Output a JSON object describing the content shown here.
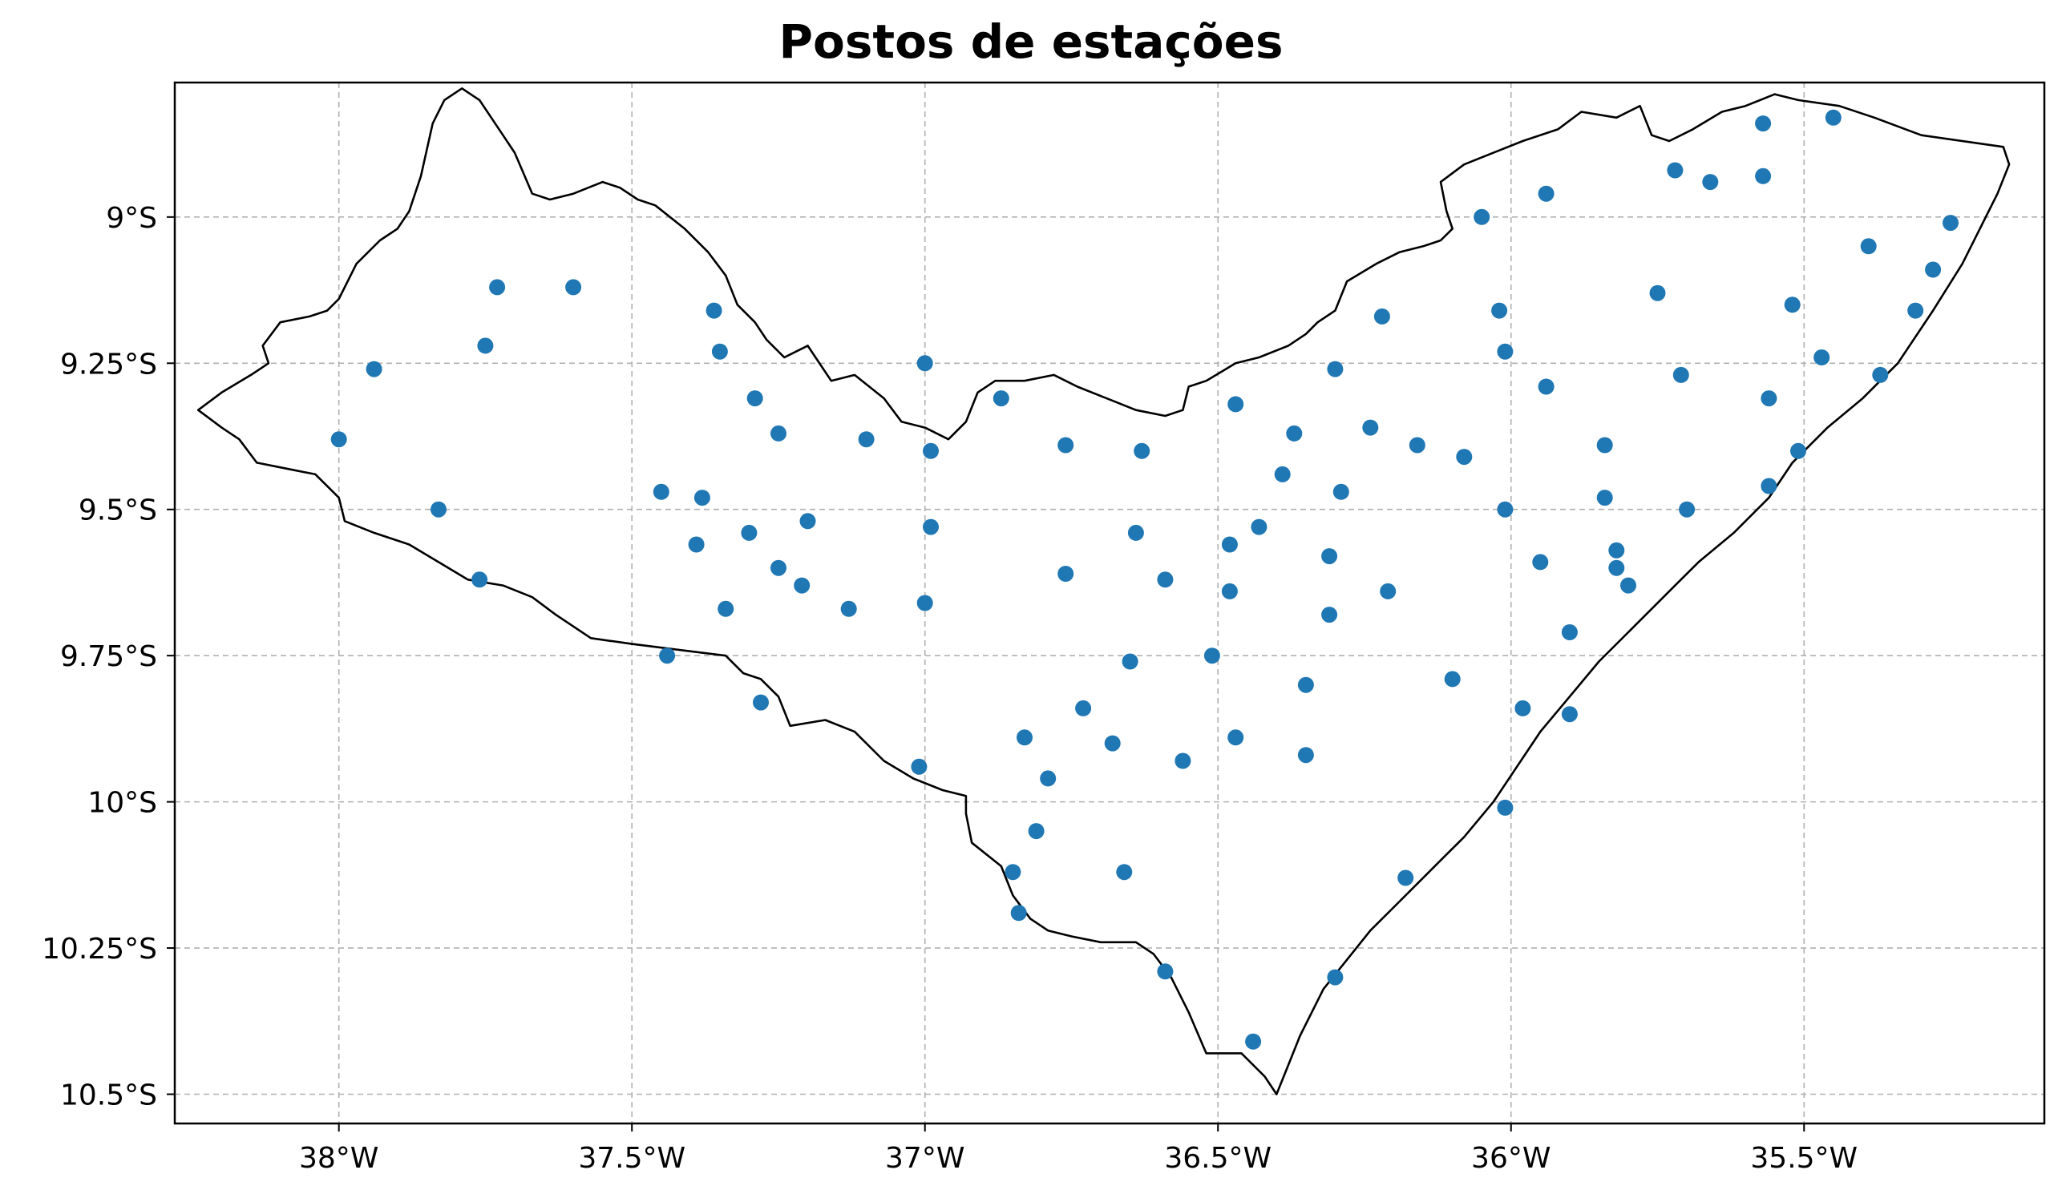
{
  "chart_data": {
    "type": "scatter",
    "title": "Postos de estações",
    "x_ticks": [
      -38.0,
      -37.5,
      -37.0,
      -36.5,
      -36.0,
      -35.5
    ],
    "x_tick_labels": [
      "38°W",
      "37.5°W",
      "37°W",
      "36.5°W",
      "36°W",
      "35.5°W"
    ],
    "y_ticks": [
      -9.0,
      -9.25,
      -9.5,
      -9.75,
      -10.0,
      -10.25,
      -10.5
    ],
    "y_tick_labels": [
      "9°S",
      "9.25°S",
      "9.5°S",
      "9.75°S",
      "10°S",
      "10.25°S",
      "10.5°S"
    ],
    "xlim": [
      -38.28,
      -35.09
    ],
    "ylim": [
      -10.55,
      -8.77
    ],
    "grid": true,
    "marker_color": "#1f77b4",
    "boundary_color": "#000000",
    "boundary": [
      [
        -38.24,
        -9.33
      ],
      [
        -38.2,
        -9.3
      ],
      [
        -38.15,
        -9.27
      ],
      [
        -38.12,
        -9.25
      ],
      [
        -38.13,
        -9.22
      ],
      [
        -38.1,
        -9.18
      ],
      [
        -38.05,
        -9.17
      ],
      [
        -38.02,
        -9.16
      ],
      [
        -38.0,
        -9.14
      ],
      [
        -37.97,
        -9.08
      ],
      [
        -37.93,
        -9.04
      ],
      [
        -37.9,
        -9.02
      ],
      [
        -37.88,
        -8.99
      ],
      [
        -37.86,
        -8.93
      ],
      [
        -37.84,
        -8.84
      ],
      [
        -37.82,
        -8.8
      ],
      [
        -37.79,
        -8.78
      ],
      [
        -37.76,
        -8.8
      ],
      [
        -37.72,
        -8.86
      ],
      [
        -37.7,
        -8.89
      ],
      [
        -37.67,
        -8.96
      ],
      [
        -37.64,
        -8.97
      ],
      [
        -37.6,
        -8.96
      ],
      [
        -37.55,
        -8.94
      ],
      [
        -37.52,
        -8.95
      ],
      [
        -37.49,
        -8.97
      ],
      [
        -37.46,
        -8.98
      ],
      [
        -37.41,
        -9.02
      ],
      [
        -37.37,
        -9.06
      ],
      [
        -37.34,
        -9.1
      ],
      [
        -37.32,
        -9.15
      ],
      [
        -37.29,
        -9.18
      ],
      [
        -37.27,
        -9.21
      ],
      [
        -37.24,
        -9.24
      ],
      [
        -37.2,
        -9.22
      ],
      [
        -37.16,
        -9.28
      ],
      [
        -37.12,
        -9.27
      ],
      [
        -37.07,
        -9.31
      ],
      [
        -37.04,
        -9.35
      ],
      [
        -37.0,
        -9.36
      ],
      [
        -36.96,
        -9.38
      ],
      [
        -36.93,
        -9.35
      ],
      [
        -36.91,
        -9.3
      ],
      [
        -36.88,
        -9.28
      ],
      [
        -36.83,
        -9.28
      ],
      [
        -36.78,
        -9.27
      ],
      [
        -36.74,
        -9.29
      ],
      [
        -36.69,
        -9.31
      ],
      [
        -36.64,
        -9.33
      ],
      [
        -36.59,
        -9.34
      ],
      [
        -36.56,
        -9.33
      ],
      [
        -36.55,
        -9.29
      ],
      [
        -36.52,
        -9.28
      ],
      [
        -36.47,
        -9.25
      ],
      [
        -36.43,
        -9.24
      ],
      [
        -36.38,
        -9.22
      ],
      [
        -36.35,
        -9.2
      ],
      [
        -36.33,
        -9.18
      ],
      [
        -36.3,
        -9.16
      ],
      [
        -36.28,
        -9.11
      ],
      [
        -36.23,
        -9.08
      ],
      [
        -36.19,
        -9.06
      ],
      [
        -36.15,
        -9.05
      ],
      [
        -36.12,
        -9.04
      ],
      [
        -36.1,
        -9.02
      ],
      [
        -36.11,
        -8.99
      ],
      [
        -36.12,
        -8.94
      ],
      [
        -36.08,
        -8.91
      ],
      [
        -36.03,
        -8.89
      ],
      [
        -35.98,
        -8.87
      ],
      [
        -35.92,
        -8.85
      ],
      [
        -35.88,
        -8.82
      ],
      [
        -35.82,
        -8.83
      ],
      [
        -35.78,
        -8.81
      ],
      [
        -35.76,
        -8.86
      ],
      [
        -35.73,
        -8.87
      ],
      [
        -35.69,
        -8.85
      ],
      [
        -35.64,
        -8.82
      ],
      [
        -35.6,
        -8.81
      ],
      [
        -35.55,
        -8.79
      ],
      [
        -35.51,
        -8.8
      ],
      [
        -35.44,
        -8.81
      ],
      [
        -35.38,
        -8.83
      ],
      [
        -35.3,
        -8.86
      ],
      [
        -35.16,
        -8.88
      ],
      [
        -35.15,
        -8.91
      ],
      [
        -35.17,
        -8.96
      ],
      [
        -35.2,
        -9.02
      ],
      [
        -35.23,
        -9.08
      ],
      [
        -35.28,
        -9.16
      ],
      [
        -35.34,
        -9.25
      ],
      [
        -35.4,
        -9.31
      ],
      [
        -35.46,
        -9.36
      ],
      [
        -35.52,
        -9.42
      ],
      [
        -35.56,
        -9.48
      ],
      [
        -35.62,
        -9.54
      ],
      [
        -35.68,
        -9.59
      ],
      [
        -35.72,
        -9.63
      ],
      [
        -35.76,
        -9.67
      ],
      [
        -35.8,
        -9.71
      ],
      [
        -35.85,
        -9.76
      ],
      [
        -35.9,
        -9.82
      ],
      [
        -35.95,
        -9.88
      ],
      [
        -35.99,
        -9.94
      ],
      [
        -36.03,
        -10.0
      ],
      [
        -36.08,
        -10.06
      ],
      [
        -36.12,
        -10.1
      ],
      [
        -36.16,
        -10.14
      ],
      [
        -36.2,
        -10.18
      ],
      [
        -36.24,
        -10.22
      ],
      [
        -36.28,
        -10.27
      ],
      [
        -36.32,
        -10.32
      ],
      [
        -36.36,
        -10.4
      ],
      [
        -36.38,
        -10.45
      ],
      [
        -36.4,
        -10.5
      ],
      [
        -36.42,
        -10.47
      ],
      [
        -36.46,
        -10.43
      ],
      [
        -36.52,
        -10.43
      ],
      [
        -36.55,
        -10.36
      ],
      [
        -36.58,
        -10.3
      ],
      [
        -36.61,
        -10.26
      ],
      [
        -36.64,
        -10.24
      ],
      [
        -36.7,
        -10.24
      ],
      [
        -36.75,
        -10.23
      ],
      [
        -36.79,
        -10.22
      ],
      [
        -36.82,
        -10.2
      ],
      [
        -36.85,
        -10.16
      ],
      [
        -36.87,
        -10.11
      ],
      [
        -36.92,
        -10.07
      ],
      [
        -36.93,
        -10.02
      ],
      [
        -36.93,
        -9.99
      ],
      [
        -36.97,
        -9.98
      ],
      [
        -37.02,
        -9.96
      ],
      [
        -37.07,
        -9.93
      ],
      [
        -37.12,
        -9.88
      ],
      [
        -37.17,
        -9.86
      ],
      [
        -37.23,
        -9.87
      ],
      [
        -37.25,
        -9.82
      ],
      [
        -37.28,
        -9.79
      ],
      [
        -37.31,
        -9.78
      ],
      [
        -37.34,
        -9.75
      ],
      [
        -37.42,
        -9.74
      ],
      [
        -37.5,
        -9.73
      ],
      [
        -37.57,
        -9.72
      ],
      [
        -37.63,
        -9.68
      ],
      [
        -37.67,
        -9.65
      ],
      [
        -37.72,
        -9.63
      ],
      [
        -37.78,
        -9.62
      ],
      [
        -37.83,
        -9.59
      ],
      [
        -37.88,
        -9.56
      ],
      [
        -37.94,
        -9.54
      ],
      [
        -37.99,
        -9.52
      ],
      [
        -38.0,
        -9.48
      ],
      [
        -38.04,
        -9.44
      ],
      [
        -38.09,
        -9.43
      ],
      [
        -38.14,
        -9.42
      ],
      [
        -38.17,
        -9.38
      ],
      [
        -38.2,
        -9.36
      ],
      [
        -38.24,
        -9.33
      ]
    ],
    "points": [
      [
        -37.0,
        -9.25
      ],
      [
        -37.94,
        -9.26
      ],
      [
        -37.73,
        -9.12
      ],
      [
        -37.6,
        -9.12
      ],
      [
        -37.36,
        -9.16
      ],
      [
        -37.35,
        -9.23
      ],
      [
        -37.75,
        -9.22
      ],
      [
        -37.29,
        -9.31
      ],
      [
        -37.25,
        -9.37
      ],
      [
        -37.1,
        -9.38
      ],
      [
        -36.99,
        -9.4
      ],
      [
        -38.0,
        -9.38
      ],
      [
        -37.83,
        -9.5
      ],
      [
        -37.45,
        -9.47
      ],
      [
        -37.38,
        -9.48
      ],
      [
        -37.39,
        -9.56
      ],
      [
        -37.3,
        -9.54
      ],
      [
        -37.2,
        -9.52
      ],
      [
        -37.25,
        -9.6
      ],
      [
        -37.21,
        -9.63
      ],
      [
        -37.34,
        -9.67
      ],
      [
        -37.13,
        -9.67
      ],
      [
        -37.76,
        -9.62
      ],
      [
        -37.0,
        -9.66
      ],
      [
        -36.99,
        -9.53
      ],
      [
        -37.44,
        -9.75
      ],
      [
        -37.28,
        -9.83
      ],
      [
        -36.87,
        -9.31
      ],
      [
        -36.76,
        -9.39
      ],
      [
        -36.63,
        -9.4
      ],
      [
        -36.76,
        -9.61
      ],
      [
        -36.64,
        -9.54
      ],
      [
        -36.59,
        -9.62
      ],
      [
        -36.65,
        -9.76
      ],
      [
        -36.73,
        -9.84
      ],
      [
        -36.83,
        -9.89
      ],
      [
        -36.79,
        -9.96
      ],
      [
        -36.68,
        -9.9
      ],
      [
        -36.56,
        -9.93
      ],
      [
        -36.47,
        -9.32
      ],
      [
        -36.37,
        -9.37
      ],
      [
        -36.39,
        -9.44
      ],
      [
        -36.43,
        -9.53
      ],
      [
        -36.48,
        -9.56
      ],
      [
        -36.48,
        -9.64
      ],
      [
        -36.51,
        -9.75
      ],
      [
        -36.47,
        -9.89
      ],
      [
        -36.35,
        -9.8
      ],
      [
        -36.35,
        -9.92
      ],
      [
        -36.29,
        -9.47
      ],
      [
        -36.31,
        -9.58
      ],
      [
        -36.31,
        -9.68
      ],
      [
        -36.22,
        -9.17
      ],
      [
        -36.3,
        -9.26
      ],
      [
        -36.24,
        -9.36
      ],
      [
        -36.16,
        -9.39
      ],
      [
        -36.08,
        -9.41
      ],
      [
        -36.21,
        -9.64
      ],
      [
        -36.1,
        -9.79
      ],
      [
        -37.01,
        -9.94
      ],
      [
        -36.81,
        -10.05
      ],
      [
        -36.85,
        -10.12
      ],
      [
        -36.84,
        -10.19
      ],
      [
        -36.66,
        -10.12
      ],
      [
        -36.59,
        -10.29
      ],
      [
        -36.44,
        -10.41
      ],
      [
        -36.3,
        -10.3
      ],
      [
        -36.18,
        -10.13
      ],
      [
        -36.01,
        -10.01
      ],
      [
        -35.98,
        -9.84
      ],
      [
        -35.95,
        -9.59
      ],
      [
        -36.01,
        -9.5
      ],
      [
        -36.05,
        -9.0
      ],
      [
        -36.02,
        -9.16
      ],
      [
        -36.01,
        -9.23
      ],
      [
        -35.94,
        -9.29
      ],
      [
        -35.94,
        -8.96
      ],
      [
        -35.72,
        -8.92
      ],
      [
        -35.66,
        -8.94
      ],
      [
        -35.57,
        -8.93
      ],
      [
        -35.57,
        -8.84
      ],
      [
        -35.45,
        -8.83
      ],
      [
        -35.75,
        -9.13
      ],
      [
        -35.71,
        -9.27
      ],
      [
        -35.56,
        -9.31
      ],
      [
        -35.52,
        -9.15
      ],
      [
        -35.47,
        -9.24
      ],
      [
        -35.51,
        -9.4
      ],
      [
        -35.56,
        -9.46
      ],
      [
        -35.7,
        -9.5
      ],
      [
        -35.84,
        -9.39
      ],
      [
        -35.84,
        -9.48
      ],
      [
        -35.82,
        -9.57
      ],
      [
        -35.82,
        -9.6
      ],
      [
        -35.8,
        -9.63
      ],
      [
        -35.9,
        -9.71
      ],
      [
        -35.9,
        -9.85
      ],
      [
        -35.39,
        -9.05
      ],
      [
        -35.25,
        -9.01
      ],
      [
        -35.28,
        -9.09
      ],
      [
        -35.31,
        -9.16
      ],
      [
        -35.37,
        -9.27
      ]
    ]
  }
}
